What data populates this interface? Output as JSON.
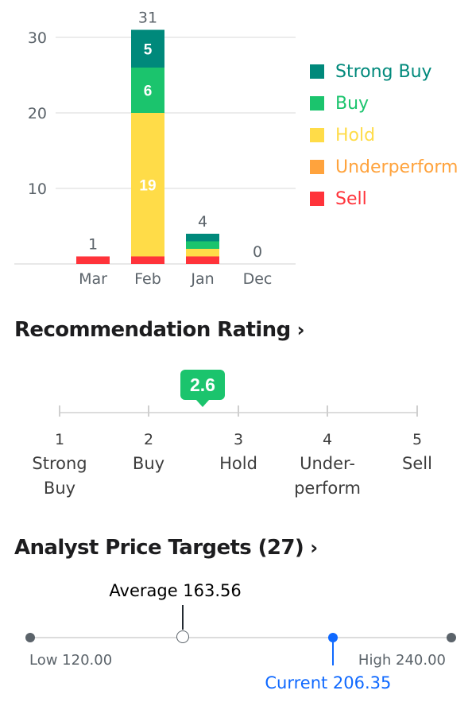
{
  "chart_data": {
    "type": "bar",
    "stacked": true,
    "categories": [
      "Mar",
      "Feb",
      "Jan",
      "Dec"
    ],
    "series": [
      {
        "name": "Sell",
        "color": "#ff333a",
        "values": [
          1,
          1,
          1,
          0
        ]
      },
      {
        "name": "Underperform",
        "color": "#ffa33d",
        "values": [
          0,
          0,
          0,
          0
        ]
      },
      {
        "name": "Hold",
        "color": "#ffdc48",
        "values": [
          0,
          19,
          1,
          0
        ]
      },
      {
        "name": "Buy",
        "color": "#1bc46d",
        "values": [
          0,
          6,
          1,
          0
        ]
      },
      {
        "name": "Strong Buy",
        "color": "#00897b",
        "values": [
          0,
          5,
          1,
          0
        ]
      }
    ],
    "totals": [
      "1",
      "31",
      "4",
      "0"
    ],
    "segment_labels": {
      "Feb": {
        "Hold": "19",
        "Buy": "6",
        "Strong Buy": "5"
      }
    },
    "yticks": [
      "10",
      "20",
      "30"
    ],
    "ylim": [
      0,
      31
    ],
    "grid": true,
    "legend_position": "right"
  },
  "legend": [
    {
      "label": "Strong Buy",
      "color": "#00897b"
    },
    {
      "label": "Buy",
      "color": "#1bc46d"
    },
    {
      "label": "Hold",
      "color": "#ffdc48"
    },
    {
      "label": "Underperform",
      "color": "#ffa33d"
    },
    {
      "label": "Sell",
      "color": "#ff333a"
    }
  ],
  "recommendation": {
    "title": "Recommendation Rating",
    "value": "2.6",
    "value_num": 2.6,
    "scale_min": 1,
    "scale_max": 5,
    "badge_color": "#1bc46d",
    "levels": [
      {
        "num": "1",
        "label": "Strong\nBuy"
      },
      {
        "num": "2",
        "label": "Buy"
      },
      {
        "num": "3",
        "label": "Hold"
      },
      {
        "num": "4",
        "label": "Under-\nperform"
      },
      {
        "num": "5",
        "label": "Sell"
      }
    ]
  },
  "price_targets": {
    "title": "Analyst Price Targets (27)",
    "low_label": "Low 120.00",
    "high_label": "High 240.00",
    "average_label": "Average 163.56",
    "current_label": "Current 206.35",
    "low": 120.0,
    "high": 240.0,
    "average": 163.56,
    "current": 206.35,
    "current_color": "#0f69ff"
  }
}
